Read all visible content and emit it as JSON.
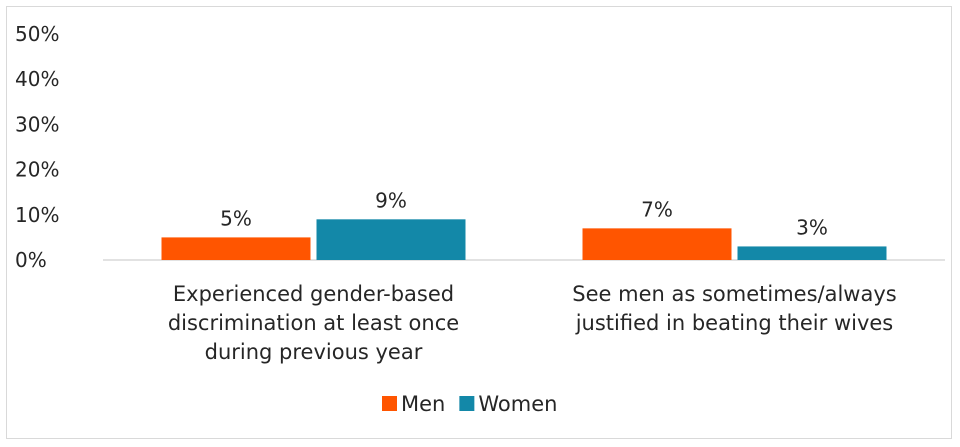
{
  "chart_data": {
    "type": "bar",
    "title": "",
    "xlabel": "",
    "ylabel": "",
    "ylim": [
      0,
      50
    ],
    "yticks": [
      "0%",
      "10%",
      "20%",
      "30%",
      "40%",
      "50%"
    ],
    "ytick_values": [
      0,
      10,
      20,
      30,
      40,
      50
    ],
    "categories": [
      [
        "Experienced gender-based",
        "discrimination at least once",
        "during previous year"
      ],
      [
        "See men as sometimes/always",
        "justified in beating their wives"
      ]
    ],
    "series": [
      {
        "name": "Men",
        "color": "#ff5500",
        "values": [
          5,
          7
        ],
        "labels": [
          "5%",
          "7%"
        ]
      },
      {
        "name": "Women",
        "color": "#1388a8",
        "values": [
          9,
          3
        ],
        "labels": [
          "9%",
          "3%"
        ]
      }
    ],
    "grid": false,
    "legend_position": "bottom"
  }
}
